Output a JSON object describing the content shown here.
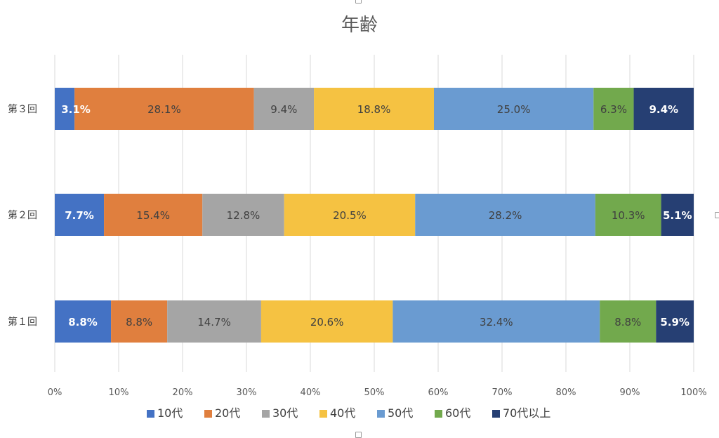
{
  "chart_data": {
    "type": "bar",
    "orientation": "horizontal",
    "stacked": "percent",
    "title": "年齢",
    "categories": [
      "第３回",
      "第２回",
      "第１回"
    ],
    "series": [
      {
        "name": "10代",
        "values": [
          3.1,
          7.7,
          8.8
        ],
        "labels": [
          "3.1%",
          "7.7%",
          "8.8%"
        ],
        "color": "#4472c4",
        "label_color": "#ffffff"
      },
      {
        "name": "20代",
        "values": [
          28.1,
          15.4,
          8.8
        ],
        "labels": [
          "28.1%",
          "15.4%",
          "8.8%"
        ],
        "color": "#e07f3e",
        "label_color": "#404040"
      },
      {
        "name": "30代",
        "values": [
          9.4,
          12.8,
          14.7
        ],
        "labels": [
          "9.4%",
          "12.8%",
          "14.7%"
        ],
        "color": "#a5a5a5",
        "label_color": "#404040"
      },
      {
        "name": "40代",
        "values": [
          18.8,
          20.5,
          20.6
        ],
        "labels": [
          "18.8%",
          "20.5%",
          "20.6%"
        ],
        "color": "#f5c242",
        "label_color": "#404040"
      },
      {
        "name": "50代",
        "values": [
          25.0,
          28.2,
          32.4
        ],
        "labels": [
          "25.0%",
          "28.2%",
          "32.4%"
        ],
        "color": "#6a9bd1",
        "label_color": "#404040"
      },
      {
        "name": "60代",
        "values": [
          6.3,
          10.3,
          8.8
        ],
        "labels": [
          "6.3%",
          "10.3%",
          "8.8%"
        ],
        "color": "#72a94d",
        "label_color": "#404040"
      },
      {
        "name": "70代以上",
        "values": [
          9.4,
          5.1,
          5.9
        ],
        "labels": [
          "9.4%",
          "5.1%",
          "5.9%"
        ],
        "color": "#263f73",
        "label_color": "#ffffff"
      }
    ],
    "xlim": [
      0,
      100
    ],
    "x_ticks": [
      0,
      10,
      20,
      30,
      40,
      50,
      60,
      70,
      80,
      90,
      100
    ],
    "x_tick_labels": [
      "0%",
      "10%",
      "20%",
      "30%",
      "40%",
      "50%",
      "60%",
      "70%",
      "80%",
      "90%",
      "100%"
    ],
    "grid": true,
    "legend_position": "bottom",
    "gridline_color": "#d9d9d9"
  }
}
